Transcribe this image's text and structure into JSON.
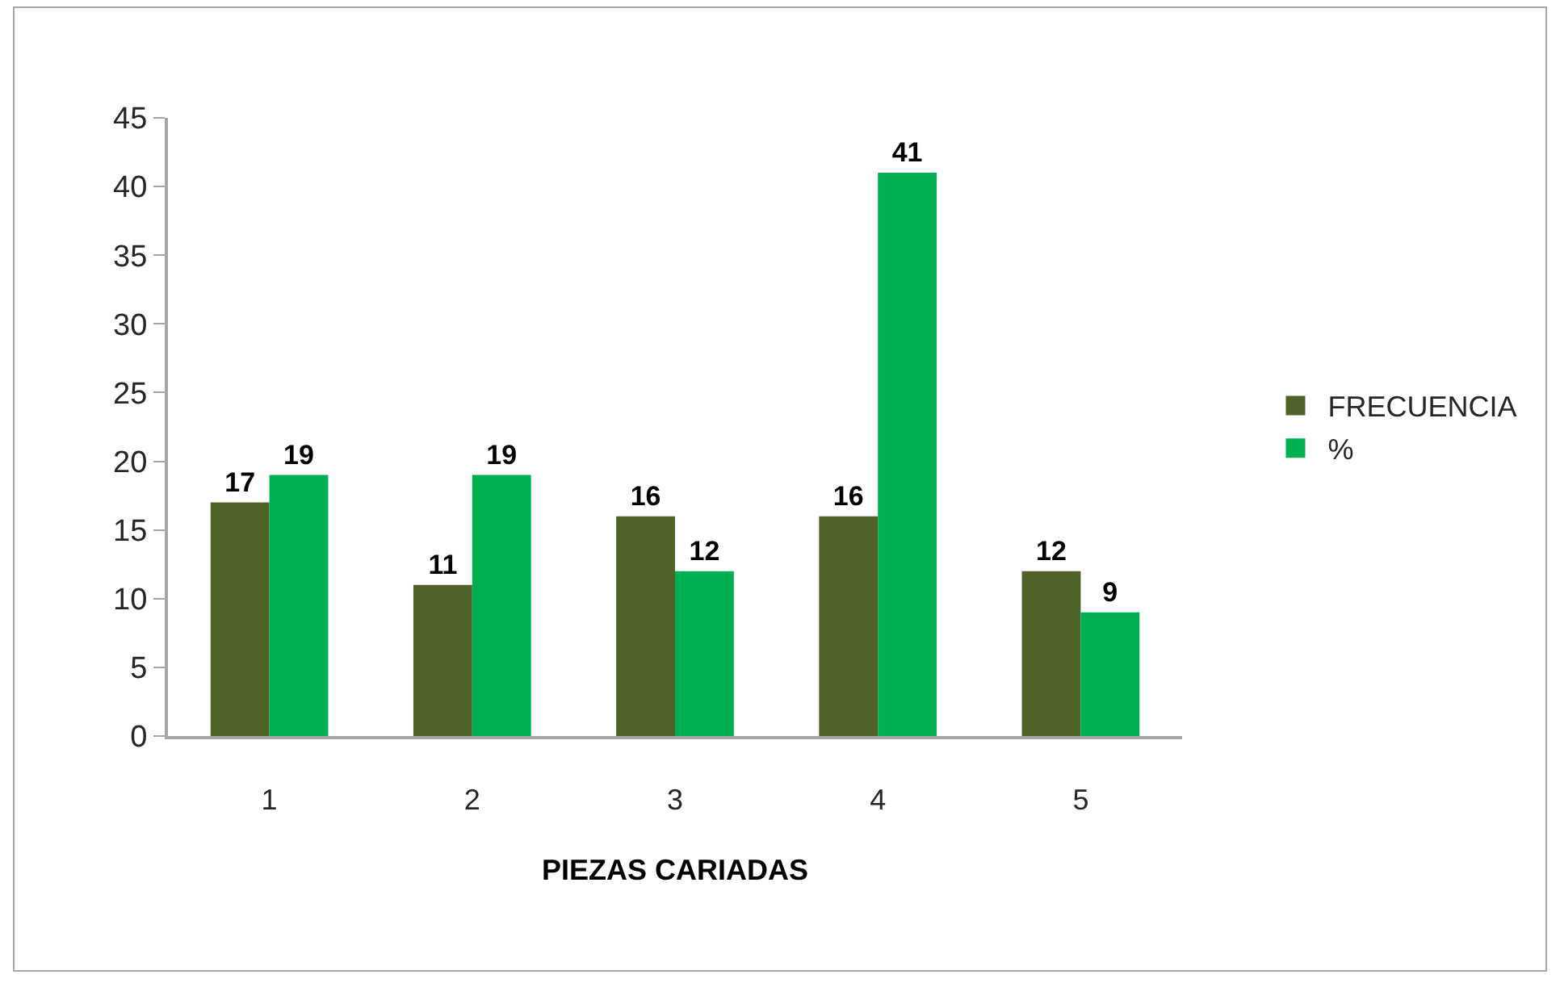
{
  "chart_data": {
    "type": "bar",
    "xlabel": "PIEZAS CARIADAS",
    "categories": [
      "1",
      "2",
      "3",
      "4",
      "5"
    ],
    "series": [
      {
        "name": "FRECUENCIA",
        "color": "#4f6228",
        "values": [
          17,
          11,
          16,
          16,
          12
        ]
      },
      {
        "name": "%",
        "color": "#00b050",
        "values": [
          19,
          19,
          12,
          41,
          9
        ]
      }
    ],
    "ylim": [
      0,
      45
    ],
    "yticks": [
      0,
      5,
      10,
      15,
      20,
      25,
      30,
      35,
      40,
      45
    ],
    "grid": false,
    "legend": "right",
    "data_labels": true
  }
}
